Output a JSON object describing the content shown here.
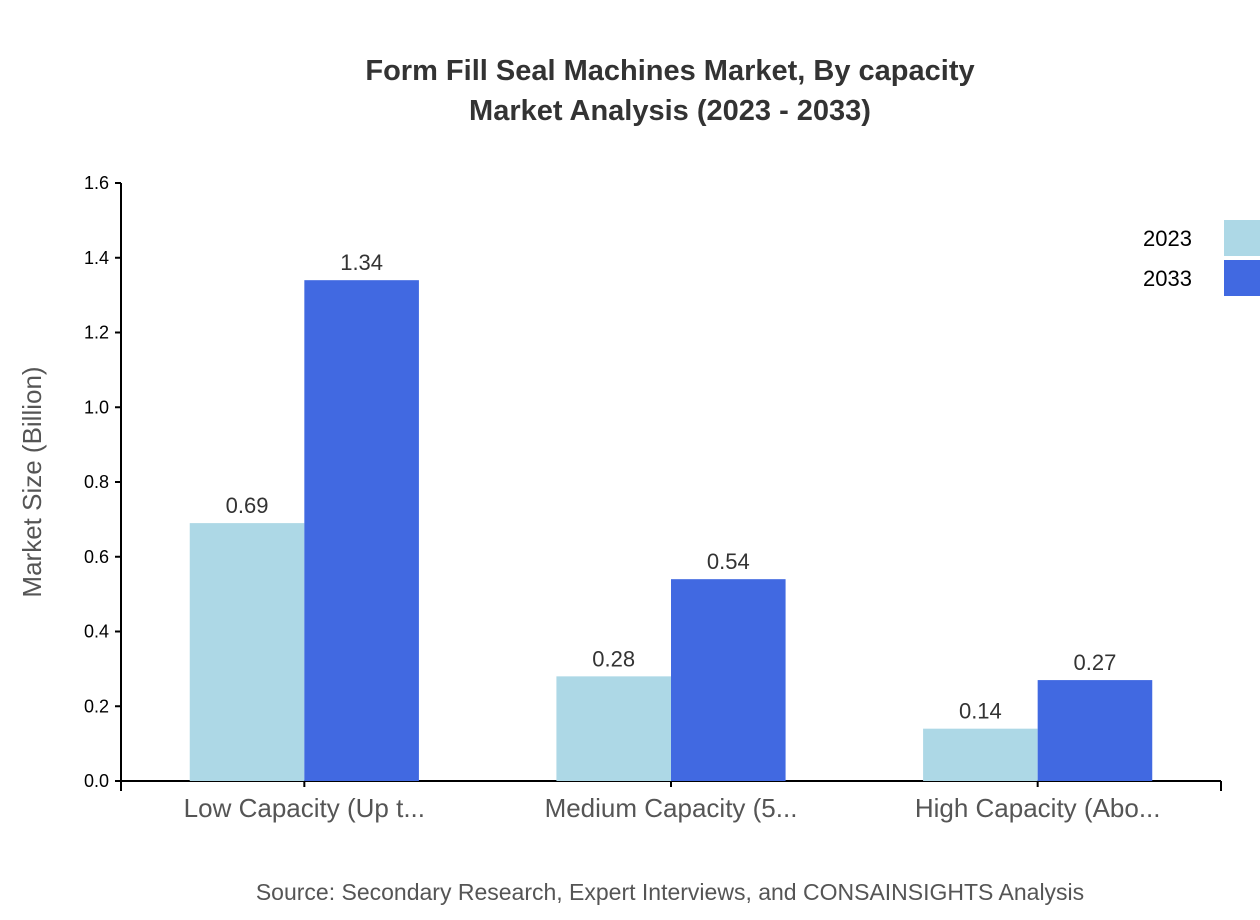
{
  "chart_data": {
    "type": "bar",
    "title": "Form Fill Seal Machines Market, By capacity",
    "subtitle": "Market Analysis (2023 - 2033)",
    "xlabel": "",
    "ylabel": "Market Size (Billion)",
    "categories": [
      "Low Capacity (Up t...",
      "Medium Capacity (5...",
      "High Capacity (Abo..."
    ],
    "series": [
      {
        "name": "2023",
        "values": [
          0.69,
          0.28,
          0.14
        ],
        "color": "#add8e6"
      },
      {
        "name": "2033",
        "values": [
          1.34,
          0.54,
          0.27
        ],
        "color": "#4169e1"
      }
    ],
    "ylim": [
      0,
      1.6
    ],
    "yticks": [
      "0.0",
      "0.2",
      "0.4",
      "0.6",
      "0.8",
      "1.0",
      "1.2",
      "1.4",
      "1.6"
    ],
    "grid": false,
    "legend": "top-right",
    "source": "Source: Secondary Research, Expert Interviews, and CONSAINSIGHTS Analysis"
  }
}
